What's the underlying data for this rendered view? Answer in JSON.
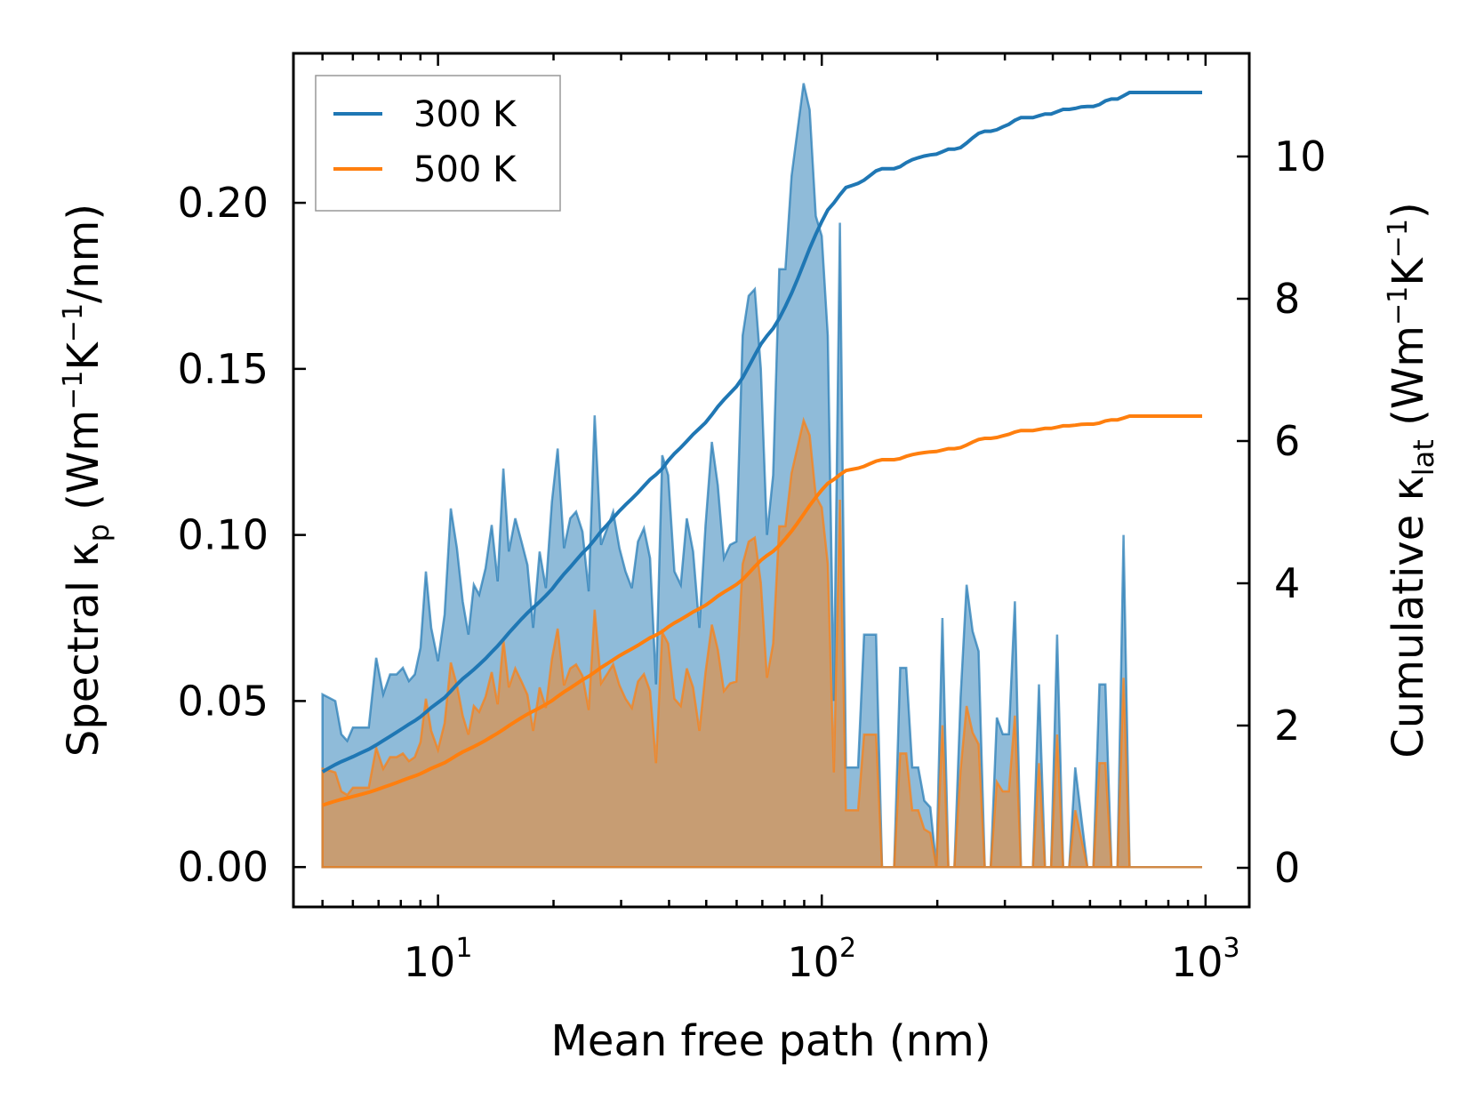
{
  "chart_data": {
    "type": "line",
    "xlabel": "Mean free path (nm)",
    "xscale": "log",
    "xlim": [
      4.2,
      1300
    ],
    "ylim_left": [
      -0.012,
      0.245
    ],
    "ylim_right": [
      -0.55,
      11.45
    ],
    "ylabel_left": {
      "pre": "Spectral κ",
      "sub": "p",
      "mid1": " (Wm",
      "sup1": "−1",
      "mid2": "K",
      "sup2": "−1",
      "post": "/nm)"
    },
    "ylabel_right": {
      "pre": "Cumulative κ",
      "sub": "lat",
      "mid1": " (Wm",
      "sup1": "−1",
      "mid2": "K",
      "sup2": "−1",
      "post": ")"
    },
    "xticks": [
      {
        "value": 10,
        "base": "10",
        "exp": "1"
      },
      {
        "value": 100,
        "base": "10",
        "exp": "2"
      },
      {
        "value": 1000,
        "base": "10",
        "exp": "3"
      }
    ],
    "yticks_left": [
      {
        "value": 0.0,
        "label": "0.00"
      },
      {
        "value": 0.05,
        "label": "0.05"
      },
      {
        "value": 0.1,
        "label": "0.10"
      },
      {
        "value": 0.15,
        "label": "0.15"
      },
      {
        "value": 0.2,
        "label": "0.20"
      }
    ],
    "yticks_right": [
      {
        "value": 0,
        "label": "0"
      },
      {
        "value": 2,
        "label": "2"
      },
      {
        "value": 4,
        "label": "4"
      },
      {
        "value": 6,
        "label": "6"
      },
      {
        "value": 8,
        "label": "8"
      },
      {
        "value": 10,
        "label": "10"
      }
    ],
    "legend": {
      "position": "top-left"
    },
    "series": [
      {
        "name": "300 K",
        "color": "#1f77b4",
        "spectral": [
          [
            5.0,
            0.052
          ],
          [
            5.2,
            0.051
          ],
          [
            5.4,
            0.05
          ],
          [
            5.6,
            0.04
          ],
          [
            5.8,
            0.038
          ],
          [
            6.0,
            0.042
          ],
          [
            6.3,
            0.042
          ],
          [
            6.6,
            0.042
          ],
          [
            6.9,
            0.063
          ],
          [
            7.2,
            0.052
          ],
          [
            7.5,
            0.058
          ],
          [
            7.8,
            0.058
          ],
          [
            8.1,
            0.06
          ],
          [
            8.4,
            0.056
          ],
          [
            8.7,
            0.058
          ],
          [
            9.0,
            0.066
          ],
          [
            9.3,
            0.089
          ],
          [
            9.6,
            0.072
          ],
          [
            10.0,
            0.062
          ],
          [
            10.4,
            0.076
          ],
          [
            10.8,
            0.108
          ],
          [
            11.2,
            0.096
          ],
          [
            11.6,
            0.08
          ],
          [
            12.0,
            0.07
          ],
          [
            12.4,
            0.085
          ],
          [
            12.8,
            0.082
          ],
          [
            13.3,
            0.09
          ],
          [
            13.8,
            0.103
          ],
          [
            14.3,
            0.086
          ],
          [
            14.8,
            0.12
          ],
          [
            15.3,
            0.095
          ],
          [
            15.9,
            0.105
          ],
          [
            16.5,
            0.098
          ],
          [
            17.1,
            0.091
          ],
          [
            17.7,
            0.072
          ],
          [
            18.4,
            0.095
          ],
          [
            19.1,
            0.084
          ],
          [
            19.8,
            0.11
          ],
          [
            20.5,
            0.126
          ],
          [
            21.3,
            0.096
          ],
          [
            22.1,
            0.105
          ],
          [
            22.9,
            0.107
          ],
          [
            23.8,
            0.101
          ],
          [
            24.7,
            0.083
          ],
          [
            25.6,
            0.136
          ],
          [
            26.6,
            0.097
          ],
          [
            27.6,
            0.102
          ],
          [
            28.6,
            0.107
          ],
          [
            29.7,
            0.096
          ],
          [
            30.8,
            0.089
          ],
          [
            32.0,
            0.084
          ],
          [
            33.2,
            0.098
          ],
          [
            34.4,
            0.102
          ],
          [
            35.7,
            0.093
          ],
          [
            37.0,
            0.055
          ],
          [
            38.4,
            0.124
          ],
          [
            39.8,
            0.118
          ],
          [
            41.3,
            0.089
          ],
          [
            42.9,
            0.085
          ],
          [
            44.5,
            0.105
          ],
          [
            46.2,
            0.095
          ],
          [
            48.0,
            0.072
          ],
          [
            49.8,
            0.103
          ],
          [
            51.7,
            0.128
          ],
          [
            53.6,
            0.115
          ],
          [
            55.6,
            0.093
          ],
          [
            57.7,
            0.097
          ],
          [
            59.9,
            0.098
          ],
          [
            62.2,
            0.16
          ],
          [
            64.5,
            0.172
          ],
          [
            66.9,
            0.174
          ],
          [
            69.4,
            0.15
          ],
          [
            72.0,
            0.1
          ],
          [
            74.7,
            0.118
          ],
          [
            77.5,
            0.18
          ],
          [
            80.4,
            0.18
          ],
          [
            83.4,
            0.208
          ],
          [
            86.5,
            0.222
          ],
          [
            89.7,
            0.236
          ],
          [
            93.0,
            0.228
          ],
          [
            96.5,
            0.196
          ],
          [
            100.0,
            0.19
          ],
          [
            103.7,
            0.16
          ],
          [
            107.5,
            0.05
          ],
          [
            111.5,
            0.194
          ],
          [
            115.6,
            0.03
          ],
          [
            119.9,
            0.03
          ],
          [
            124.3,
            0.03
          ],
          [
            128.9,
            0.07
          ],
          [
            133.6,
            0.07
          ],
          [
            138.5,
            0.07
          ],
          [
            143.6,
            0.0
          ],
          [
            148.9,
            0.0
          ],
          [
            154.4,
            0.0
          ],
          [
            160.1,
            0.06
          ],
          [
            166.0,
            0.06
          ],
          [
            172.1,
            0.03
          ],
          [
            178.4,
            0.03
          ],
          [
            185.0,
            0.02
          ],
          [
            191.8,
            0.018
          ],
          [
            198.9,
            0.0
          ],
          [
            206.2,
            0.075
          ],
          [
            213.8,
            0.0
          ],
          [
            221.7,
            0.0
          ],
          [
            229.9,
            0.051
          ],
          [
            238.4,
            0.085
          ],
          [
            247.2,
            0.071
          ],
          [
            256.3,
            0.065
          ],
          [
            265.8,
            0.0
          ],
          [
            275.6,
            0.0
          ],
          [
            285.8,
            0.045
          ],
          [
            296.3,
            0.04
          ],
          [
            307.2,
            0.04
          ],
          [
            318.5,
            0.08
          ],
          [
            330.3,
            0.0
          ],
          [
            342.5,
            0.0
          ],
          [
            355.1,
            0.0
          ],
          [
            368.2,
            0.055
          ],
          [
            381.8,
            0.0
          ],
          [
            395.9,
            0.0
          ],
          [
            410.5,
            0.07
          ],
          [
            425.6,
            0.0
          ],
          [
            441.3,
            0.0
          ],
          [
            457.6,
            0.03
          ],
          [
            474.5,
            0.015
          ],
          [
            492.0,
            0.0
          ],
          [
            510.2,
            0.0
          ],
          [
            529.0,
            0.055
          ],
          [
            548.5,
            0.055
          ],
          [
            568.7,
            0.0
          ],
          [
            589.7,
            0.0
          ],
          [
            611.5,
            0.1
          ],
          [
            634.1,
            0.0
          ],
          [
            657.5,
            0.0
          ],
          [
            681.8,
            0.0
          ],
          [
            707.0,
            0.0
          ],
          [
            733.1,
            0.0
          ],
          [
            760.2,
            0.0
          ],
          [
            788.3,
            0.0
          ],
          [
            817.4,
            0.0
          ],
          [
            847.6,
            0.0
          ],
          [
            878.9,
            0.0
          ],
          [
            911.4,
            0.0
          ],
          [
            945.1,
            0.0
          ],
          [
            980.0,
            0.0
          ]
        ],
        "cumulative": []
      },
      {
        "name": "500 K",
        "color": "#ff7f0e",
        "spectral": [],
        "cumulative": []
      }
    ]
  }
}
